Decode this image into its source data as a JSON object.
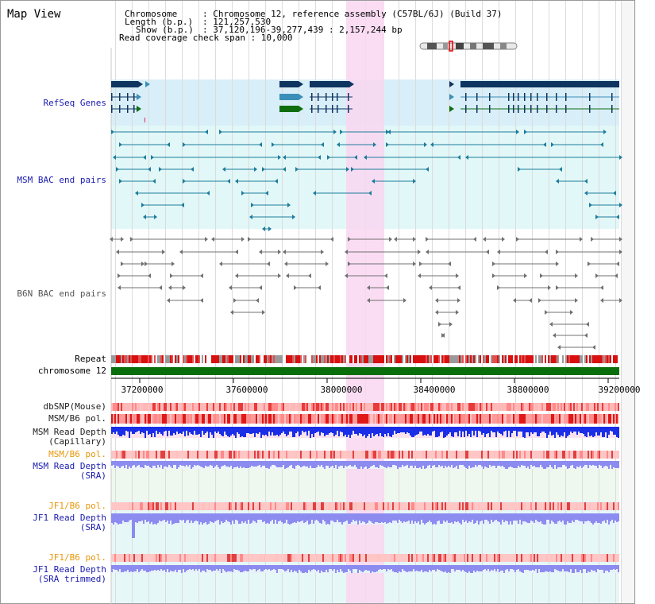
{
  "title": "Map View",
  "header": {
    "chromosome_label": "Chromosome",
    "chromosome_value": ": Chromosome 12, reference assembly (C57BL/6J) (Build 37)",
    "length_label": "Length (b.p.)",
    "length_value": ": 121,257,530",
    "show_label": "Show (b.p.)",
    "show_value": ": 37,120,196-39,277,439 : 2,157,244 bp",
    "coverage_text": "Read coverage check span : 10,000"
  },
  "tracks": {
    "refseq": "RefSeq Genes",
    "msm_bac": "MSM BAC end pairs",
    "b6n_bac": "B6N BAC end pairs",
    "repeat": "Repeat",
    "chromosome": "chromosome 12",
    "dbsnp": "dbSNP(Mouse)",
    "msm_b6_pol": "MSM/B6 pol.",
    "msm_depth_cap_1": "MSM Read Depth",
    "msm_depth_cap_2": "(Capillary)",
    "msm_b6_pol_sra": "MSM/B6 pol.",
    "msm_depth_sra_1": "MSM Read Depth",
    "msm_depth_sra_2": "(SRA)",
    "jf1_b6_pol_1": "JF1/B6 pol.",
    "jf1_depth_sra_1": "JF1 Read Depth",
    "jf1_depth_sra_2": "(SRA)",
    "jf1_b6_pol_2": "JF1/B6 pol.",
    "jf1_depth_trim_1": "JF1 Read Depth",
    "jf1_depth_trim_2": "(SRA trimmed)"
  },
  "axis": {
    "ticks": [
      "37200000",
      "37600000",
      "38000000",
      "38400000",
      "38800000",
      "39200000"
    ]
  },
  "colors": {
    "refseq_bg": "#d8eef8",
    "bac_bg": "#e2f7f7",
    "highlight": "#f9d7f1",
    "gene_navy": "#0e3460",
    "gene_teal": "#3a8fb8",
    "gene_green": "#0e6e0e",
    "msm_feature": "#1c7c9c",
    "b6n_feature": "#707070",
    "chromosome_bar": "#0a6e0a",
    "depth_blue": "#1a2ee8",
    "depth_lavender": "#8c8cf0",
    "label_navy": "#1a1ab0",
    "label_orange": "#e8960a"
  },
  "icons": [
    "chromosome-ideogram-icon"
  ]
}
